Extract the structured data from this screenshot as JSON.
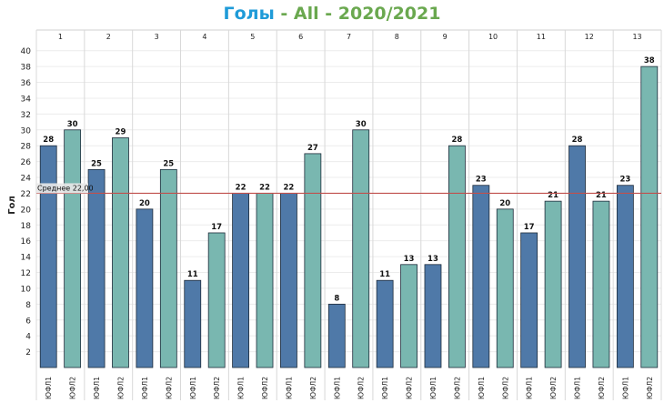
{
  "title": {
    "part1": "Голы",
    "sep1": " - ",
    "part2": "All",
    "sep2": " - ",
    "part3": "2020/2021"
  },
  "colors": {
    "title_blue": "#1f9bd8",
    "title_green": "#6aa84f",
    "series1": "#4f79a8",
    "series2": "#79b7b0",
    "average_line": "#c0504d"
  },
  "chart_data": {
    "type": "bar",
    "title": "Голы - All - 2020/2021",
    "ylabel": "Гол",
    "xlabel": "",
    "ylim": [
      0,
      41
    ],
    "yticks": [
      2,
      4,
      6,
      8,
      10,
      12,
      14,
      16,
      18,
      20,
      22,
      24,
      26,
      28,
      30,
      32,
      34,
      36,
      38,
      40
    ],
    "groups": [
      "1",
      "2",
      "3",
      "4",
      "5",
      "6",
      "7",
      "8",
      "9",
      "10",
      "11",
      "12",
      "13"
    ],
    "series": [
      {
        "name": "ЮФЛ1",
        "values": [
          28,
          25,
          20,
          11,
          22,
          22,
          8,
          11,
          13,
          23,
          17,
          28,
          23
        ]
      },
      {
        "name": "ЮФЛ2",
        "values": [
          30,
          29,
          25,
          17,
          22,
          27,
          30,
          13,
          28,
          20,
          21,
          21,
          38
        ]
      }
    ],
    "average": {
      "label": "Среднее 22,00",
      "value": 22
    },
    "grid": true
  }
}
